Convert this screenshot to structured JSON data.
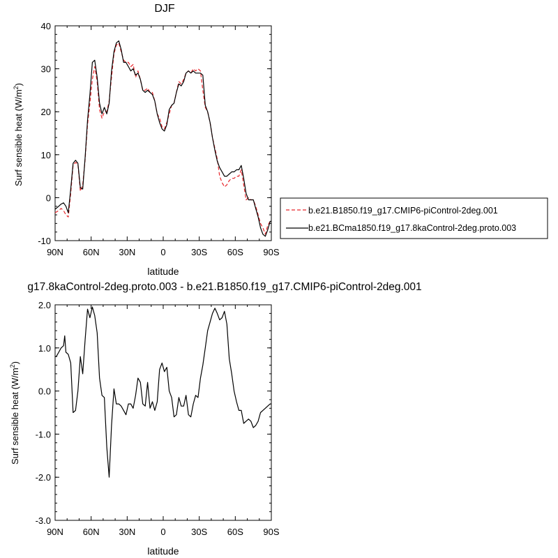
{
  "chart_data": [
    {
      "type": "line",
      "title": "DJF",
      "xlabel": "latitude",
      "ylabel": "Surf sensible heat (W/m",
      "ylabel_sup": "2",
      "ylabel_suffix": ")",
      "xlim": [
        90,
        -90
      ],
      "ylim": [
        -10,
        40
      ],
      "xticks": [
        90,
        60,
        30,
        0,
        -30,
        -60,
        -90
      ],
      "xtick_labels": [
        "90N",
        "60N",
        "30N",
        "0",
        "30S",
        "60S",
        "90S"
      ],
      "yticks": [
        -10,
        0,
        10,
        20,
        30,
        40
      ],
      "ytick_labels": [
        "-10",
        "0",
        "10",
        "20",
        "30",
        "40"
      ],
      "legend_position": "right",
      "series": [
        {
          "name": "b.e21.B1850.f19_g17.CMIP6-piControl-2deg.001",
          "color": "#e8262b",
          "dash": "dashed",
          "x": [
            90,
            87,
            85,
            83,
            81,
            79,
            77,
            75,
            73,
            71,
            69,
            67,
            65,
            63,
            61,
            59,
            57,
            55,
            53,
            51,
            49,
            47,
            45,
            43,
            41,
            39,
            37,
            35,
            33,
            31,
            29,
            27,
            25,
            23,
            21,
            19,
            17,
            15,
            13,
            11,
            9,
            7,
            5,
            3,
            1,
            -1,
            -3,
            -5,
            -7,
            -9,
            -11,
            -13,
            -15,
            -17,
            -19,
            -21,
            -23,
            -25,
            -27,
            -29,
            -31,
            -33,
            -35,
            -37,
            -39,
            -41,
            -43,
            -45,
            -47,
            -49,
            -51,
            -53,
            -55,
            -57,
            -59,
            -61,
            -63,
            -65,
            -67,
            -69,
            -71,
            -73,
            -75,
            -77,
            -79,
            -81,
            -83,
            -85,
            -87,
            -89,
            -90
          ],
          "y": [
            -3.5,
            -3.0,
            -2.5,
            -3.0,
            -4.0,
            -4.5,
            1.0,
            7.5,
            8.2,
            7.8,
            1.5,
            3.0,
            9.0,
            17.0,
            22.0,
            27.5,
            30.5,
            27.0,
            20.5,
            18.5,
            20.0,
            20.0,
            22.5,
            28.0,
            33.5,
            35.5,
            36.0,
            34.0,
            32.0,
            31.5,
            31.5,
            30.5,
            31.0,
            28.0,
            29.5,
            27.5,
            25.0,
            25.0,
            25.5,
            24.5,
            24.5,
            22.5,
            19.5,
            18.5,
            16.5,
            16.0,
            17.5,
            19.5,
            21.5,
            22.0,
            24.5,
            27.0,
            26.5,
            27.5,
            29.0,
            29.5,
            29.0,
            30.0,
            29.5,
            30.0,
            29.5,
            25.0,
            21.0,
            20.0,
            17.5,
            14.0,
            11.5,
            9.0,
            5.0,
            3.5,
            2.5,
            3.0,
            4.0,
            4.5,
            4.5,
            5.0,
            5.0,
            6.5,
            3.0,
            -0.5,
            0.0,
            -0.5,
            -0.5,
            -2.0,
            -4.0,
            -6.0,
            -7.0,
            -8.5,
            -6.5,
            -5.5,
            -5.5
          ]
        },
        {
          "name": "b.e21.BCma1850.f19_g17.8kaControl-2deg.proto.003",
          "color": "#000000",
          "dash": "solid",
          "x": [
            90,
            87,
            85,
            83,
            81,
            79,
            77,
            75,
            73,
            71,
            69,
            67,
            65,
            63,
            61,
            59,
            57,
            55,
            53,
            51,
            49,
            47,
            45,
            43,
            41,
            39,
            37,
            35,
            33,
            31,
            29,
            27,
            25,
            23,
            21,
            19,
            17,
            15,
            13,
            11,
            9,
            7,
            5,
            3,
            1,
            -1,
            -3,
            -5,
            -7,
            -9,
            -11,
            -13,
            -15,
            -17,
            -19,
            -21,
            -23,
            -25,
            -27,
            -29,
            -31,
            -33,
            -35,
            -37,
            -39,
            -41,
            -43,
            -45,
            -47,
            -49,
            -51,
            -53,
            -55,
            -57,
            -59,
            -61,
            -63,
            -65,
            -67,
            -69,
            -71,
            -73,
            -75,
            -77,
            -79,
            -81,
            -83,
            -85,
            -87,
            -89,
            -90
          ],
          "y": [
            -2.7,
            -2.0,
            -1.5,
            -1.2,
            -2.0,
            -3.5,
            2.0,
            8.0,
            8.7,
            8.0,
            2.3,
            2.0,
            9.5,
            18.0,
            24.0,
            31.5,
            32.0,
            28.0,
            22.0,
            19.5,
            21.0,
            19.5,
            22.0,
            29.5,
            34.0,
            36.0,
            36.5,
            34.5,
            31.5,
            31.5,
            30.5,
            29.5,
            30.0,
            28.5,
            29.0,
            27.5,
            25.0,
            24.5,
            25.0,
            24.5,
            24.0,
            22.5,
            19.5,
            17.5,
            16.0,
            15.5,
            17.0,
            20.5,
            21.5,
            22.0,
            24.5,
            26.5,
            26.0,
            27.0,
            29.0,
            29.5,
            29.0,
            29.5,
            29.0,
            29.0,
            29.0,
            28.5,
            21.5,
            20.0,
            17.5,
            14.0,
            11.0,
            8.5,
            7.0,
            6.0,
            5.0,
            5.0,
            5.5,
            6.0,
            6.0,
            6.5,
            6.5,
            7.5,
            4.5,
            1.0,
            -0.5,
            -0.5,
            -0.5,
            -2.5,
            -4.5,
            -7.0,
            -8.5,
            -9.0,
            -7.5,
            -5.5,
            -5.5
          ]
        }
      ]
    },
    {
      "type": "line",
      "title": "g17.8kaControl-2deg.proto.003 - b.e21.B1850.f19_g17.CMIP6-piControl-2deg.001",
      "xlabel": "latitude",
      "ylabel": "Surf sensible heat (W/m",
      "ylabel_sup": "2",
      "ylabel_suffix": ")",
      "xlim": [
        90,
        -90
      ],
      "ylim": [
        -3,
        2
      ],
      "xticks": [
        90,
        60,
        30,
        0,
        -30,
        -60,
        -90
      ],
      "xtick_labels": [
        "90N",
        "60N",
        "30N",
        "0",
        "30S",
        "60S",
        "90S"
      ],
      "yticks": [
        -3,
        -2,
        -1,
        0,
        1,
        2
      ],
      "ytick_labels": [
        "-3.0",
        "-2.0",
        "-1.0",
        "0.0",
        "1.0",
        "2.0"
      ],
      "series": [
        {
          "color": "#000000",
          "dash": "solid",
          "x": [
            90,
            89,
            87,
            85,
            83,
            82,
            81,
            79,
            77,
            75,
            73,
            71,
            69,
            67,
            65,
            63,
            61,
            59,
            57,
            55,
            53,
            51,
            49,
            47,
            45,
            43,
            41,
            39,
            37,
            35,
            33,
            31,
            29,
            27,
            25,
            23,
            21,
            19,
            17,
            15,
            13,
            11,
            9,
            7,
            5,
            3,
            1,
            -1,
            -3,
            -5,
            -7,
            -9,
            -11,
            -13,
            -15,
            -17,
            -19,
            -21,
            -23,
            -25,
            -27,
            -29,
            -31,
            -33,
            -35,
            -37,
            -39,
            -41,
            -43,
            -45,
            -47,
            -49,
            -51,
            -53,
            -55,
            -57,
            -59,
            -61,
            -63,
            -65,
            -67,
            -69,
            -71,
            -73,
            -75,
            -77,
            -79,
            -81,
            -83,
            -85,
            -87,
            -89,
            -90
          ],
          "y": [
            0.8,
            0.8,
            0.9,
            1.0,
            1.05,
            1.28,
            0.9,
            0.85,
            0.65,
            -0.5,
            -0.45,
            0.0,
            0.8,
            0.4,
            1.2,
            1.9,
            1.7,
            1.95,
            1.75,
            1.35,
            0.3,
            -0.1,
            -0.15,
            -1.3,
            -2.0,
            -0.8,
            0.05,
            -0.3,
            -0.3,
            -0.35,
            -0.45,
            -0.55,
            -0.3,
            -0.3,
            -0.4,
            -0.1,
            0.3,
            0.2,
            -0.3,
            -0.35,
            0.2,
            -0.4,
            -0.25,
            -0.45,
            -0.25,
            0.5,
            0.65,
            0.45,
            0.55,
            0.0,
            -0.15,
            -0.6,
            -0.55,
            -0.15,
            -0.35,
            -0.35,
            -0.1,
            -0.55,
            -0.6,
            -0.3,
            -0.1,
            -0.15,
            0.3,
            0.6,
            1.0,
            1.4,
            1.6,
            1.8,
            1.92,
            1.8,
            1.65,
            1.7,
            1.85,
            1.55,
            0.75,
            0.4,
            0.0,
            -0.25,
            -0.45,
            -0.45,
            -0.75,
            -0.7,
            -0.65,
            -0.7,
            -0.85,
            -0.8,
            -0.7,
            -0.5,
            -0.45,
            -0.4,
            -0.35,
            -0.3,
            -0.3
          ]
        }
      ]
    }
  ]
}
